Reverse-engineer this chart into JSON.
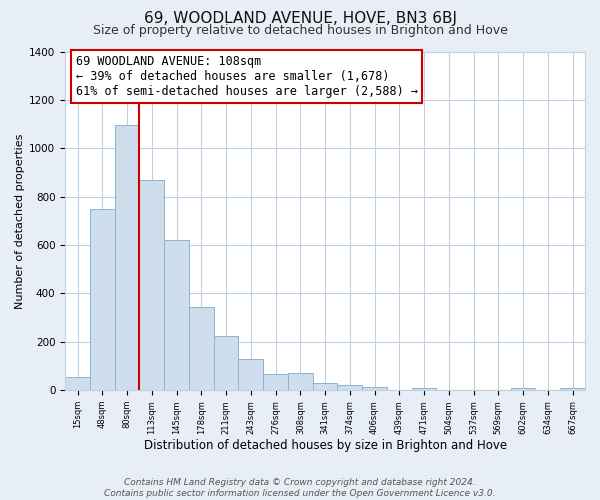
{
  "title": "69, WOODLAND AVENUE, HOVE, BN3 6BJ",
  "subtitle": "Size of property relative to detached houses in Brighton and Hove",
  "xlabel": "Distribution of detached houses by size in Brighton and Hove",
  "ylabel": "Number of detached properties",
  "categories": [
    "15sqm",
    "48sqm",
    "80sqm",
    "113sqm",
    "145sqm",
    "178sqm",
    "211sqm",
    "243sqm",
    "276sqm",
    "308sqm",
    "341sqm",
    "374sqm",
    "406sqm",
    "439sqm",
    "471sqm",
    "504sqm",
    "537sqm",
    "569sqm",
    "602sqm",
    "634sqm",
    "667sqm"
  ],
  "values": [
    55,
    750,
    1095,
    870,
    620,
    345,
    225,
    130,
    65,
    70,
    28,
    20,
    15,
    0,
    10,
    0,
    0,
    0,
    10,
    0,
    10
  ],
  "bar_color": "#cfdeed",
  "bar_edge_color": "#8ab4d0",
  "property_line_color": "#cc0000",
  "annotation_text": "69 WOODLAND AVENUE: 108sqm\n← 39% of detached houses are smaller (1,678)\n61% of semi-detached houses are larger (2,588) →",
  "annotation_box_color": "#ffffff",
  "annotation_box_edge": "#cc0000",
  "ylim": [
    0,
    1400
  ],
  "yticks": [
    0,
    200,
    400,
    600,
    800,
    1000,
    1200,
    1400
  ],
  "footer": "Contains HM Land Registry data © Crown copyright and database right 2024.\nContains public sector information licensed under the Open Government Licence v3.0.",
  "background_color": "#e8eef5",
  "plot_bg_color": "#ffffff",
  "grid_color": "#c0d0e0",
  "title_fontsize": 11,
  "subtitle_fontsize": 9,
  "xlabel_fontsize": 8.5,
  "ylabel_fontsize": 8,
  "footer_fontsize": 6.5,
  "annotation_fontsize": 8.5
}
